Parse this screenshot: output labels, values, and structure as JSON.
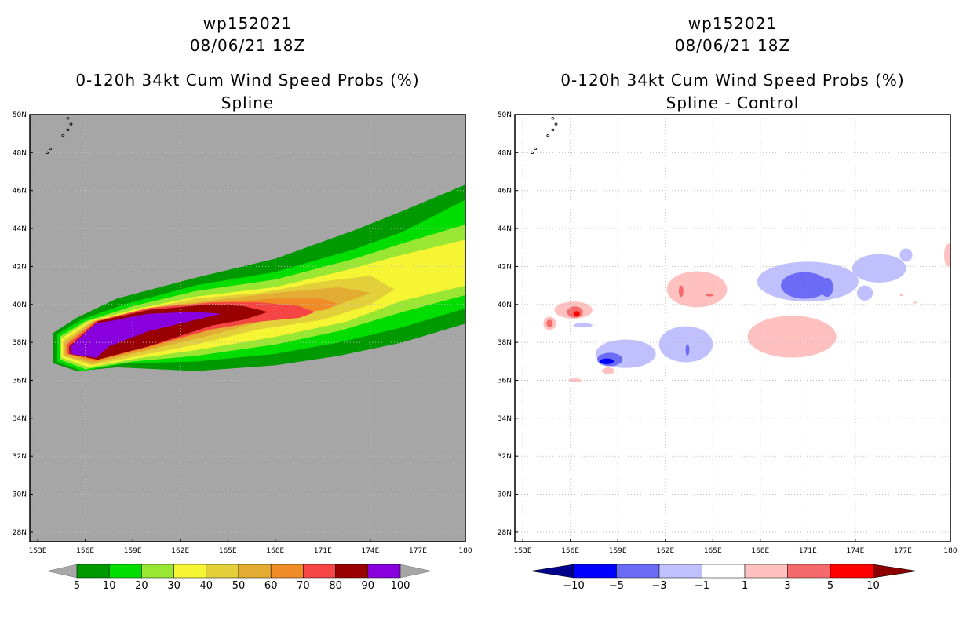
{
  "chart_data": [
    {
      "type": "heatmap",
      "title_lines": [
        "wp152021",
        "08/06/21 18Z",
        "0-120h 34kt Cum Wind Speed Probs (%)",
        "Spline"
      ],
      "x_ticks": [
        "153E",
        "156E",
        "159E",
        "162E",
        "165E",
        "168E",
        "171E",
        "174E",
        "177E",
        "180"
      ],
      "y_ticks": [
        "50N",
        "48N",
        "46N",
        "44N",
        "42N",
        "40N",
        "38N",
        "36N",
        "34N",
        "32N",
        "30N",
        "28N"
      ],
      "xlim": [
        152.5,
        180
      ],
      "ylim": [
        27.5,
        50
      ],
      "background_color": "#a6a6a6",
      "colorbar": {
        "labels": [
          "5",
          "10",
          "20",
          "30",
          "40",
          "50",
          "60",
          "70",
          "80",
          "90",
          "100"
        ],
        "colors": [
          "#009900",
          "#00dd00",
          "#99e633",
          "#f5f533",
          "#e3cf3a",
          "#e3ad33",
          "#f08c26",
          "#f54545",
          "#990000",
          "#8800dd"
        ]
      },
      "bands": [
        {
          "value": 5,
          "color": "#009900",
          "x": [
            154.0,
            155.5,
            158.0,
            163.0,
            168.0,
            173.0,
            176.0,
            180.0,
            180.0,
            176.0,
            172.0,
            168.0,
            163.0,
            158.0,
            155.5,
            154.0
          ],
          "ymax": [
            38.5,
            39.3,
            40.3,
            41.4,
            42.4,
            43.9,
            44.9,
            46.3,
            39.0,
            38.0,
            37.3,
            36.8,
            36.5,
            36.7,
            36.5,
            36.9
          ]
        },
        {
          "value": 10,
          "color": "#00dd00",
          "x": [
            154.2,
            155.8,
            158.5,
            163.0,
            168.0,
            173.0,
            176.0,
            180.0,
            180.0,
            176.0,
            172.0,
            168.0,
            163.0,
            158.5,
            155.8,
            154.2
          ],
          "ymax": [
            38.4,
            39.2,
            40.0,
            41.0,
            41.7,
            42.9,
            43.8,
            45.5,
            39.8,
            38.8,
            38.0,
            37.4,
            37.0,
            36.9,
            36.5,
            37.0
          ]
        },
        {
          "value": 20,
          "color": "#99e633",
          "x": [
            154.4,
            156.0,
            159.0,
            163.0,
            168.0,
            173.0,
            176.0,
            180.0,
            180.0,
            176.0,
            172.0,
            168.0,
            163.0,
            159.0,
            156.0,
            154.4
          ],
          "ymax": [
            38.3,
            39.1,
            39.9,
            40.7,
            41.3,
            42.4,
            43.2,
            44.2,
            40.5,
            39.6,
            38.6,
            37.9,
            37.3,
            37.0,
            36.6,
            37.1
          ]
        },
        {
          "value": 30,
          "color": "#f5f533",
          "x": [
            154.5,
            156.2,
            159.5,
            163.0,
            168.0,
            172.5,
            176.0,
            180.0,
            180.0,
            176.0,
            172.5,
            168.0,
            163.0,
            159.5,
            156.2,
            154.5
          ],
          "ymax": [
            38.2,
            39.1,
            39.8,
            40.4,
            40.9,
            41.8,
            42.6,
            43.4,
            41.0,
            40.2,
            39.1,
            38.3,
            37.6,
            37.2,
            36.7,
            37.2
          ]
        },
        {
          "value": 40,
          "color": "#e3cf3a",
          "x": [
            154.6,
            156.4,
            160.0,
            163.0,
            167.0,
            171.0,
            174.0,
            175.5,
            174.0,
            171.0,
            167.0,
            163.0,
            160.0,
            156.4,
            154.6
          ],
          "ymax": [
            38.1,
            39.1,
            39.8,
            40.3,
            40.6,
            41.2,
            41.5,
            40.8,
            40.0,
            39.2,
            38.7,
            37.9,
            37.4,
            36.8,
            37.3
          ]
        },
        {
          "value": 50,
          "color": "#e3ad33",
          "x": [
            154.7,
            156.5,
            160.0,
            164.0,
            168.0,
            172.0,
            174.0,
            172.0,
            168.0,
            164.0,
            160.0,
            156.5,
            154.7
          ],
          "ymax": [
            38.0,
            39.1,
            39.8,
            40.2,
            40.6,
            40.9,
            40.6,
            40.0,
            39.3,
            38.4,
            37.6,
            36.9,
            37.3
          ]
        },
        {
          "value": 60,
          "color": "#f08c26",
          "x": [
            154.8,
            156.6,
            160.0,
            164.0,
            168.0,
            171.0,
            172.0,
            171.0,
            168.0,
            164.0,
            160.0,
            156.6,
            154.8
          ],
          "ymax": [
            37.9,
            39.1,
            39.8,
            40.1,
            40.3,
            40.3,
            40.0,
            39.7,
            39.5,
            38.7,
            37.7,
            37.0,
            37.4
          ]
        },
        {
          "value": 70,
          "color": "#f54545",
          "x": [
            154.9,
            156.7,
            160.0,
            164.0,
            167.0,
            169.5,
            170.5,
            169.5,
            167.0,
            164.0,
            160.0,
            156.7,
            154.9
          ],
          "ymax": [
            37.9,
            39.1,
            39.8,
            40.1,
            40.1,
            39.9,
            39.6,
            39.3,
            39.1,
            38.7,
            37.8,
            37.1,
            37.4
          ]
        },
        {
          "value": 80,
          "color": "#990000",
          "x": [
            155.0,
            156.8,
            160.0,
            164.0,
            166.0,
            167.5,
            166.0,
            164.0,
            160.0,
            156.8,
            155.0
          ],
          "ymax": [
            37.8,
            39.1,
            39.7,
            40.0,
            39.9,
            39.6,
            39.2,
            38.9,
            37.8,
            37.1,
            37.4
          ]
        },
        {
          "value": 100,
          "color": "#8800dd",
          "x": [
            155.1,
            156.7,
            157.5,
            160.0,
            163.0,
            164.5,
            163.0,
            160.0,
            157.5,
            156.7,
            155.1
          ],
          "ymax": [
            37.8,
            39.0,
            39.1,
            39.5,
            39.6,
            39.5,
            39.2,
            38.6,
            37.8,
            37.2,
            37.4
          ]
        }
      ],
      "islands": [
        {
          "x": 153.6,
          "y": 48.0
        },
        {
          "x": 153.8,
          "y": 48.2
        },
        {
          "x": 154.6,
          "y": 48.9
        },
        {
          "x": 154.9,
          "y": 49.2
        },
        {
          "x": 155.1,
          "y": 49.5
        },
        {
          "x": 154.9,
          "y": 49.8
        }
      ]
    },
    {
      "type": "heatmap",
      "title_lines": [
        "wp152021",
        "08/06/21 18Z",
        "0-120h 34kt Cum Wind Speed Probs (%)",
        "Spline - Control"
      ],
      "x_ticks": [
        "153E",
        "156E",
        "159E",
        "162E",
        "165E",
        "168E",
        "171E",
        "174E",
        "177E",
        "180"
      ],
      "y_ticks": [
        "50N",
        "48N",
        "46N",
        "44N",
        "42N",
        "40N",
        "38N",
        "36N",
        "34N",
        "32N",
        "30N",
        "28N"
      ],
      "xlim": [
        152.5,
        180
      ],
      "ylim": [
        27.5,
        50
      ],
      "background_color": "#ffffff",
      "colorbar": {
        "labels": [
          "-10",
          "-5",
          "-3",
          "-1",
          "1",
          "3",
          "5",
          "10"
        ],
        "colors": [
          "#00008b",
          "#0000ff",
          "#6b6bf5",
          "#c0c0ff",
          "#ffffff",
          "#ffc0c0",
          "#f56b6b",
          "#ff0000",
          "#8b0000"
        ]
      },
      "blobs": [
        {
          "value": 1.5,
          "color": "#ffc0c0",
          "cx": 154.7,
          "cy": 39.0,
          "rx": 0.4,
          "ry": 0.35
        },
        {
          "value": 1.5,
          "color": "#ffc0c0",
          "cx": 156.2,
          "cy": 39.7,
          "rx": 1.2,
          "ry": 0.45
        },
        {
          "value": 4,
          "color": "#f56b6b",
          "cx": 154.7,
          "cy": 39.0,
          "rx": 0.2,
          "ry": 0.2
        },
        {
          "value": 4,
          "color": "#f56b6b",
          "cx": 156.3,
          "cy": 39.6,
          "rx": 0.5,
          "ry": 0.3
        },
        {
          "value": 7,
          "color": "#ff0000",
          "cx": 156.4,
          "cy": 39.5,
          "rx": 0.2,
          "ry": 0.15
        },
        {
          "value": -2,
          "color": "#c0c0ff",
          "cx": 156.8,
          "cy": 38.9,
          "rx": 0.6,
          "ry": 0.12
        },
        {
          "value": 1.5,
          "color": "#ffc0c0",
          "cx": 158.4,
          "cy": 36.5,
          "rx": 0.4,
          "ry": 0.18
        },
        {
          "value": 1.5,
          "color": "#ffc0c0",
          "cx": 156.3,
          "cy": 36.0,
          "rx": 0.4,
          "ry": 0.1
        },
        {
          "value": -2,
          "color": "#c0c0ff",
          "cx": 159.5,
          "cy": 37.4,
          "rx": 1.9,
          "ry": 0.75
        },
        {
          "value": -2,
          "color": "#c0c0ff",
          "cx": 163.3,
          "cy": 37.9,
          "rx": 1.7,
          "ry": 0.95
        },
        {
          "value": -4,
          "color": "#6b6bf5",
          "cx": 158.5,
          "cy": 37.1,
          "rx": 0.8,
          "ry": 0.35
        },
        {
          "value": -7,
          "color": "#0000ff",
          "cx": 158.3,
          "cy": 37.0,
          "rx": 0.45,
          "ry": 0.15
        },
        {
          "value": -4,
          "color": "#6b6bf5",
          "cx": 163.4,
          "cy": 37.6,
          "rx": 0.12,
          "ry": 0.3
        },
        {
          "value": 1.5,
          "color": "#ffc0c0",
          "cx": 164.0,
          "cy": 40.8,
          "rx": 1.9,
          "ry": 0.95
        },
        {
          "value": 4,
          "color": "#f56b6b",
          "cx": 163.0,
          "cy": 40.7,
          "rx": 0.15,
          "ry": 0.3
        },
        {
          "value": 4,
          "color": "#f56b6b",
          "cx": 164.8,
          "cy": 40.5,
          "rx": 0.25,
          "ry": 0.08
        },
        {
          "value": -2,
          "color": "#c0c0ff",
          "cx": 171.0,
          "cy": 41.2,
          "rx": 3.2,
          "ry": 1.05
        },
        {
          "value": -2,
          "color": "#c0c0ff",
          "cx": 175.5,
          "cy": 41.9,
          "rx": 1.7,
          "ry": 0.75
        },
        {
          "value": -2,
          "color": "#c0c0ff",
          "cx": 177.2,
          "cy": 42.6,
          "rx": 0.4,
          "ry": 0.35
        },
        {
          "value": -2,
          "color": "#c0c0ff",
          "cx": 174.6,
          "cy": 40.6,
          "rx": 0.5,
          "ry": 0.4
        },
        {
          "value": -4,
          "color": "#6b6bf5",
          "cx": 170.8,
          "cy": 41.0,
          "rx": 1.5,
          "ry": 0.7
        },
        {
          "value": -4,
          "color": "#6b6bf5",
          "cx": 172.2,
          "cy": 40.9,
          "rx": 0.4,
          "ry": 0.5
        },
        {
          "value": 1.5,
          "color": "#ffc0c0",
          "cx": 170.0,
          "cy": 38.3,
          "rx": 2.8,
          "ry": 1.1
        },
        {
          "value": 1.5,
          "color": "#ffc0c0",
          "cx": 179.9,
          "cy": 42.6,
          "rx": 0.3,
          "ry": 0.6
        },
        {
          "value": 1.5,
          "color": "#ffc0c0",
          "cx": 176.9,
          "cy": 40.5,
          "rx": 0.1,
          "ry": 0.06
        },
        {
          "value": 1.5,
          "color": "#ffc0c0",
          "cx": 177.8,
          "cy": 40.1,
          "rx": 0.12,
          "ry": 0.05
        }
      ],
      "islands": [
        {
          "x": 153.6,
          "y": 48.0
        },
        {
          "x": 153.8,
          "y": 48.2
        },
        {
          "x": 154.6,
          "y": 48.9
        },
        {
          "x": 154.9,
          "y": 49.2
        },
        {
          "x": 155.1,
          "y": 49.5
        },
        {
          "x": 154.9,
          "y": 49.8
        }
      ]
    }
  ]
}
